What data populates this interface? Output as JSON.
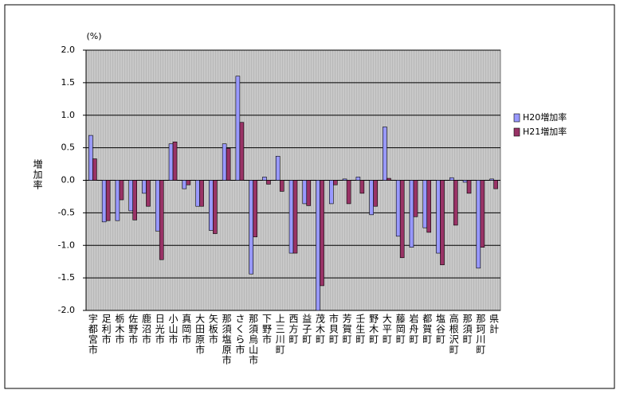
{
  "chart_data": {
    "type": "bar",
    "y_unit": "(%)",
    "y_label": "増加率",
    "categories": [
      "宇都宮市",
      "足利市",
      "栃木市",
      "佐野市",
      "鹿沼市",
      "日光市",
      "小山市",
      "真岡市",
      "大田原市",
      "矢板市",
      "那須塩原市",
      "さくら市",
      "那須烏山市",
      "下野市",
      "上三川町",
      "西方町",
      "益子町",
      "茂木町",
      "市貝町",
      "芳賀町",
      "壬生町",
      "野木町",
      "大平町",
      "藤岡町",
      "岩舟町",
      "都賀町",
      "塩谷町",
      "高根沢町",
      "那須町",
      "那珂川町",
      "県計"
    ],
    "series": [
      {
        "name": "H20増加率",
        "color": "#9999ff",
        "values": [
          0.69,
          -0.64,
          -0.62,
          -0.47,
          -0.2,
          -0.78,
          0.56,
          -0.13,
          -0.4,
          -0.77,
          0.56,
          1.6,
          -1.44,
          0.05,
          0.37,
          -1.12,
          -0.36,
          -2.0,
          -0.36,
          0.02,
          0.05,
          -0.53,
          0.82,
          -0.86,
          -1.03,
          -0.73,
          -1.12,
          0.04,
          -0.03,
          -1.35,
          0.02
        ]
      },
      {
        "name": "H21増加率",
        "color": "#993366",
        "values": [
          0.33,
          -0.62,
          -0.3,
          -0.61,
          -0.4,
          -1.22,
          0.59,
          -0.07,
          -0.4,
          -0.82,
          0.49,
          0.89,
          -0.87,
          -0.06,
          -0.17,
          -1.12,
          -0.39,
          -1.62,
          -0.07,
          -0.36,
          -0.2,
          -0.4,
          0.03,
          -1.19,
          -0.56,
          -0.8,
          -1.3,
          -0.69,
          -0.2,
          -1.03,
          -0.13
        ]
      }
    ],
    "ylim": [
      -2,
      2
    ],
    "yticks": [
      {
        "value": 2,
        "label": "2.0"
      },
      1.5,
      {
        "value": 1,
        "label": "1.0"
      },
      0.5,
      {
        "value": 0,
        "label": "0.0"
      },
      -0.5,
      {
        "value": -1,
        "label": "-1.0"
      },
      -1.5,
      {
        "value": -2,
        "label": "-2.0"
      }
    ],
    "grid": true,
    "legend": "right"
  }
}
